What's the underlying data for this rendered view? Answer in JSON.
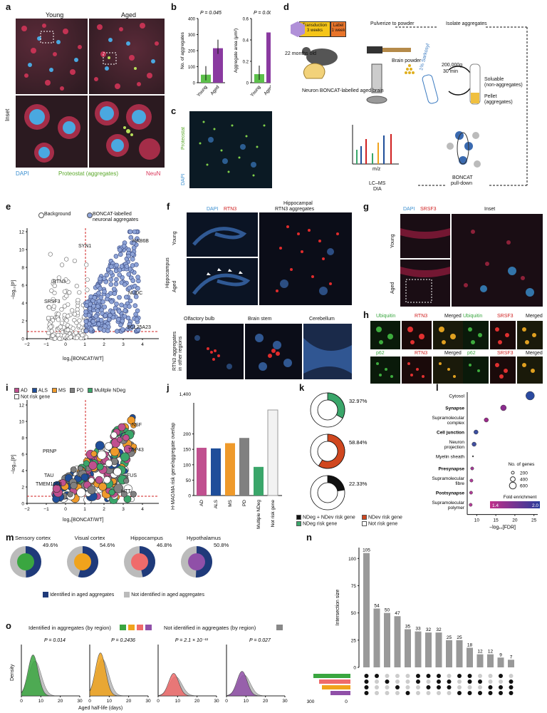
{
  "panel_letters": {
    "a": "a",
    "b": "b",
    "c": "c",
    "d": "d",
    "e": "e",
    "f": "f",
    "g": "g",
    "h": "h",
    "i": "i",
    "j": "j",
    "k": "k",
    "l": "l",
    "m": "m",
    "n": "n",
    "o": "o"
  },
  "a": {
    "young": "Young",
    "aged": "Aged",
    "inset": "Inset",
    "dapi": "DAPI",
    "proteostat": "Proteostat (aggregates)",
    "neun": "NeuN"
  },
  "b": {
    "chart_data": [
      {
        "type": "bar",
        "categories": [
          "Young",
          "Aged"
        ],
        "values": [
          50,
          215
        ],
        "ylabel": "No. of aggregates",
        "p": "P = 0.045",
        "ylim": [
          0,
          400
        ],
        "yticks": [
          "0",
          "100",
          "200",
          "300",
          "400"
        ]
      },
      {
        "type": "bar",
        "categories": [
          "Young",
          "Aged"
        ],
        "values": [
          0.08,
          0.47
        ],
        "ylabel": "Aggregate area (μm²)",
        "p": "P = 0.002",
        "ylim": [
          0,
          0.6
        ],
        "yticks": [
          "0",
          "0.2",
          "0.4",
          "0.6"
        ]
      }
    ]
  },
  "c": {
    "proteostat": "Proteostat",
    "dapi": "DAPI"
  },
  "d": {
    "transduction": "Transduction",
    "transduction_time": "3 weeks",
    "label": "Label",
    "label_time": "1 week",
    "age": "22 months old",
    "brain": "Neuron BONCAT-labelled aged brain",
    "pulverize": "Pulverize to powder",
    "brain_powder": "Brain powder",
    "isolate": "Isolate aggregates",
    "sarkosyl": "1% Sarkosyl",
    "spin": "200,000g",
    "spin_time": "30 min",
    "soluble": "Soluable",
    "soluble2": "(non-aggregates)",
    "pellet": "Pellet",
    "pellet2": "(aggregates)",
    "mz": "m/z",
    "lcms": "LC–MS",
    "dia": "DIA",
    "boncat": "BONCAT",
    "pulldown": "pull-down"
  },
  "e": {
    "legend_bg": "Background",
    "legend_boncat": "BONCAT-labelled",
    "legend_boncat2": "neuronal aggregates",
    "ylabel": "−log₁₀[P]",
    "xlabel": "log₂[BONCAT/WT]",
    "xticks": [
      "−2",
      "−1",
      "0",
      "1",
      "2",
      "3",
      "4"
    ],
    "yticks": [
      "0",
      "2",
      "4",
      "6",
      "8",
      "10",
      "12"
    ],
    "genes": [
      "RAB6B",
      "SYN1",
      "RTN3",
      "SRSF3",
      "NUDC",
      "SCL25A23"
    ]
  },
  "f": {
    "dapi": "DAPI",
    "rtn3": "RTN3",
    "hippo_title": "Hippocampal",
    "hippo_title2": "RTN3 aggregates",
    "young": "Young",
    "aged": "Aged",
    "hippocampus": "Hippocampus",
    "olfactory": "Olfactory bulb",
    "brainstem": "Brain stem",
    "cerebellum": "Cerebellum",
    "other": "RTN3 aggregates",
    "other2": "in other regions"
  },
  "g": {
    "dapi": "DAPI",
    "srsf3": "SRSF3",
    "inset": "Inset",
    "young": "Young",
    "aged": "Aged"
  },
  "h": {
    "ubiquitin": "Ubiquitin",
    "rtn3": "RTN3",
    "merged": "Merged",
    "srsf3": "SRSF3",
    "p62": "p62"
  },
  "i": {
    "legend": [
      "AD",
      "ALS",
      "MS",
      "PD",
      "Mulitple NDeg",
      "Not risk gene"
    ],
    "legend_colors": [
      "#c0508f",
      "#1f4e9a",
      "#ef9a2b",
      "#808080",
      "#3aa66a",
      "#ffffff"
    ],
    "genes": [
      "NSF",
      "TDP43",
      "PRNP",
      "FUS",
      "TAU",
      "TMEM106B",
      "HTT"
    ],
    "ylabel": "−log₁₀[P]",
    "xlabel": "log₂[BONCAT/WT]",
    "xticks": [
      "−2",
      "−1",
      "0",
      "1",
      "2",
      "3",
      "4"
    ],
    "yticks": [
      "0",
      "2",
      "4",
      "6",
      "8",
      "10",
      "12"
    ]
  },
  "j": {
    "chart_data": {
      "type": "bar",
      "categories": [
        "AD",
        "ALS",
        "MS",
        "PD",
        "Multiple NDeg",
        "Not risk gene"
      ],
      "values": [
        155,
        153,
        170,
        187,
        93,
        1320
      ],
      "colors": [
        "#c0508f",
        "#1f4e9a",
        "#ef9a2b",
        "#808080",
        "#3aa66a",
        "#f2f2f2"
      ],
      "ylabel": "H-MAGMA risk gene/aggregate overlap",
      "yticks": [
        "0",
        "50",
        "100",
        "150",
        "200",
        "1,400"
      ]
    }
  },
  "k": {
    "chart_data": [
      {
        "type": "pie",
        "label": "32.97%",
        "value": 32.97,
        "color": "#3aa66a"
      },
      {
        "type": "pie",
        "label": "58.84%",
        "value": 58.84,
        "color": "#d0471f"
      },
      {
        "type": "pie",
        "label": "22.33%",
        "value": 22.33,
        "color": "#111111"
      }
    ],
    "legend": [
      "NDeg + NDev risk gene",
      "NDev risk gene",
      "NDeg risk gene",
      "Not risk gene"
    ],
    "legend_colors": [
      "#111111",
      "#d0471f",
      "#3aa66a",
      "#ffffff"
    ]
  },
  "l": {
    "chart_data": {
      "type": "scatter",
      "categories": [
        "Cytosol",
        "Synapse",
        "Supramolecular complex",
        "Cell junction",
        "Neuron projection",
        "Myelin sheath",
        "Presynapse",
        "Supramolecular fibre",
        "Postsynapse",
        "Supramolecular polymer"
      ],
      "bold": [
        false,
        true,
        false,
        true,
        false,
        false,
        true,
        false,
        true,
        false
      ],
      "x": [
        24,
        17,
        12.5,
        9.8,
        9.3,
        9.0,
        8.8,
        8.6,
        8.5,
        8.4
      ],
      "colors": [
        "#2a4aa0",
        "#8b2c8f",
        "#9b2a8a",
        "#3b4ea0",
        "#4250a0",
        "#555555",
        "#a23a96",
        "#b13d9a",
        "#b23d98",
        "#b53d98"
      ],
      "xlabel": "−log₁₀[FDR]",
      "xticks": [
        "10",
        "15",
        "20",
        "25"
      ]
    },
    "size_title": "No. of genes",
    "sizes": [
      "200",
      "400",
      "600"
    ],
    "fe_title": "Fold enrichment",
    "fe_min": "1.4",
    "fe_max": "2.0"
  },
  "m": {
    "regions": [
      {
        "name": "Sensory cortex",
        "pct": "49.6%",
        "color": "#3aa640"
      },
      {
        "name": "Visual cortex",
        "pct": "54.6%",
        "color": "#f0a31c"
      },
      {
        "name": "Hippocampus",
        "pct": "46.8%",
        "color": "#ef6b6b"
      },
      {
        "name": "Hypothalamus",
        "pct": "50.8%",
        "color": "#9050a8"
      }
    ],
    "legend_in": "Identified in aged aggregates",
    "legend_out": "Not identified in aged aggregates"
  },
  "n": {
    "chart_data": {
      "type": "bar",
      "values": [
        105,
        54,
        50,
        47,
        35,
        33,
        32,
        32,
        25,
        25,
        18,
        12,
        12,
        9,
        7
      ],
      "ylabel": "Intersection size",
      "yticks": [
        "0",
        "25",
        "50",
        "75",
        "100"
      ],
      "set_ticks": [
        "300",
        "0"
      ]
    }
  },
  "o": {
    "title_in": "Identified in aggregates (by region)",
    "title_out": "Not identified in aggregates (by region)",
    "ps": [
      "P = 0.014",
      "P = 0.2436",
      "P = 2.1 × 10⁻¹¹",
      "P = 0.027"
    ],
    "ylabel": "Density",
    "xlabel": "Aged half-life (days)",
    "xticks": [
      "0",
      "10",
      "20",
      "30"
    ]
  }
}
